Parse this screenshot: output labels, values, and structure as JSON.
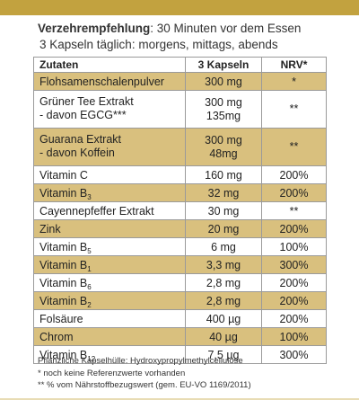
{
  "recommendation": {
    "label": "Verzehrempfehlung",
    "text": ": 30 Minuten vor dem Essen",
    "line2": "3 Kapseln täglich: morgens, mittags, abends"
  },
  "table": {
    "headers": [
      "Zutaten",
      "3 Kapseln",
      "NRV*"
    ],
    "rows": [
      {
        "name": "Flohsamenschalenpulver",
        "sub": "",
        "name2": "",
        "amount": "300 mg",
        "amount2": "",
        "nrv": "*"
      },
      {
        "name": "Grüner Tee Extrakt",
        "sub": "",
        "name2": "- davon EGCG***",
        "amount": "300 mg",
        "amount2": "135mg",
        "nrv": "**"
      },
      {
        "name": "Guarana Extrakt",
        "sub": "",
        "name2": "- davon Koffein",
        "amount": "300 mg",
        "amount2": "48mg",
        "nrv": "**"
      },
      {
        "name": "Vitamin C",
        "sub": "",
        "name2": "",
        "amount": "160 mg",
        "amount2": "",
        "nrv": "200%"
      },
      {
        "name": "Vitamin B",
        "sub": "3",
        "name2": "",
        "amount": "32 mg",
        "amount2": "",
        "nrv": "200%"
      },
      {
        "name": "Cayennepfeffer Extrakt",
        "sub": "",
        "name2": "",
        "amount": "30 mg",
        "amount2": "",
        "nrv": "**"
      },
      {
        "name": "Zink",
        "sub": "",
        "name2": "",
        "amount": "20 mg",
        "amount2": "",
        "nrv": "200%"
      },
      {
        "name": "Vitamin B",
        "sub": "5",
        "name2": "",
        "amount": "6 mg",
        "amount2": "",
        "nrv": "100%"
      },
      {
        "name": "Vitamin B",
        "sub": "1",
        "name2": "",
        "amount": "3,3 mg",
        "amount2": "",
        "nrv": "300%"
      },
      {
        "name": "Vitamin B",
        "sub": "6",
        "name2": "",
        "amount": "2,8 mg",
        "amount2": "",
        "nrv": "200%"
      },
      {
        "name": "Vitamin B",
        "sub": "2",
        "name2": "",
        "amount": "2,8 mg",
        "amount2": "",
        "nrv": "200%"
      },
      {
        "name": "Folsäure",
        "sub": "",
        "name2": "",
        "amount": "400 µg",
        "amount2": "",
        "nrv": "200%"
      },
      {
        "name": "Chrom",
        "sub": "",
        "name2": "",
        "amount": "40 µg",
        "amount2": "",
        "nrv": "100%"
      },
      {
        "name": "Vitamin B",
        "sub": "12",
        "name2": "",
        "amount": "7,5 µg",
        "amount2": "",
        "nrv": "300%"
      }
    ]
  },
  "footnotes": [
    "Pflanzliche Kapselhülle: Hydroxypropylmethylcellulose",
    "* noch keine Referenzwerte vorhanden",
    "** % vom Nährstoffbezugswert (gem. EU-VO 1169/2011)"
  ],
  "colors": {
    "gold_bar": "#c2a23f",
    "gold_row": "#d9c07e",
    "border": "#9a9a9a"
  }
}
